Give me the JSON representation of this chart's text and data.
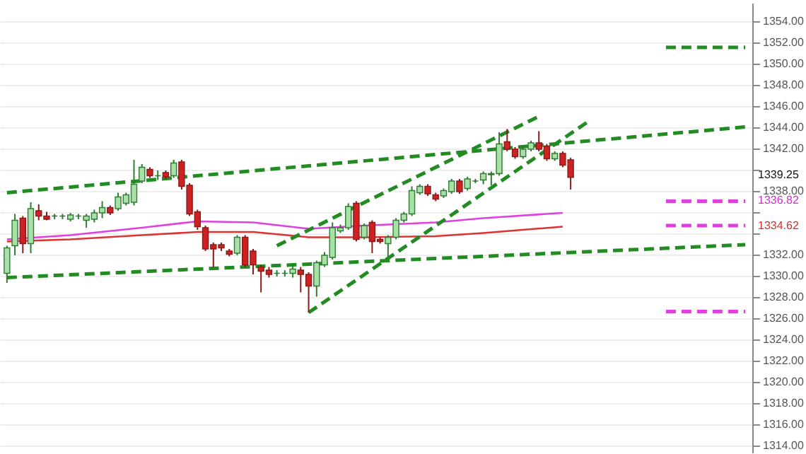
{
  "chart_data": {
    "type": "candlestick",
    "categories": [
      null,
      null,
      null,
      null,
      null,
      null,
      null,
      null,
      null,
      null,
      null,
      null,
      null,
      null,
      null,
      null,
      null,
      null,
      null,
      null,
      null,
      null,
      null,
      null,
      null,
      null,
      null,
      null,
      null,
      null,
      null,
      null,
      null,
      null,
      null,
      null,
      null,
      null,
      null,
      null,
      null,
      null,
      null,
      null,
      null,
      null,
      null,
      null,
      null,
      null,
      null,
      null,
      null,
      null,
      null,
      null,
      null,
      null,
      null,
      null,
      null,
      null,
      null,
      null,
      null,
      null,
      null,
      null,
      null,
      null,
      null,
      null,
      null,
      null,
      null,
      null,
      null,
      null,
      null,
      null,
      null,
      null,
      null,
      null,
      null,
      null,
      null,
      null,
      null,
      null,
      null,
      null,
      null,
      null
    ],
    "ohlc": [
      [
        1330.2,
        1332.8,
        1329.3,
        1332.6
      ],
      [
        1332.8,
        1335.8,
        1331.9,
        1335.2
      ],
      [
        1335.4,
        1335.6,
        1332.1,
        1333.0
      ],
      [
        1333.0,
        1336.9,
        1332.1,
        1336.3
      ],
      [
        1336.1,
        1336.7,
        1335.2,
        1335.6
      ],
      [
        1335.6,
        1336.0,
        1335.2,
        1335.3
      ],
      [
        1335.6,
        1335.8,
        1335.3,
        1335.6
      ],
      [
        1335.6,
        1335.8,
        1335.3,
        1335.6
      ],
      [
        1335.3,
        1335.9,
        1335.1,
        1335.7
      ],
      [
        1335.6,
        1335.8,
        1335.3,
        1335.6
      ],
      [
        1335.2,
        1335.8,
        1334.5,
        1335.6
      ],
      [
        1335.3,
        1336.2,
        1335.0,
        1335.9
      ],
      [
        1335.9,
        1337.0,
        1335.4,
        1336.4
      ],
      [
        1336.4,
        1336.6,
        1335.7,
        1335.9
      ],
      [
        1336.3,
        1337.8,
        1336.1,
        1337.4
      ],
      [
        1336.8,
        1337.8,
        1336.6,
        1337.6
      ],
      [
        1336.9,
        1340.9,
        1336.6,
        1338.6
      ],
      [
        1338.9,
        1340.5,
        1338.7,
        1340.2
      ],
      [
        1340.0,
        1340.2,
        1339.2,
        1339.4
      ],
      [
        1339.4,
        1339.9,
        1339.0,
        1339.4
      ],
      [
        1339.7,
        1339.9,
        1339.1,
        1339.3
      ],
      [
        1339.4,
        1340.9,
        1339.2,
        1340.6
      ],
      [
        1340.7,
        1340.9,
        1338.1,
        1338.4
      ],
      [
        1338.5,
        1338.7,
        1335.6,
        1335.8
      ],
      [
        1336.0,
        1336.2,
        1334.3,
        1334.6
      ],
      [
        1334.5,
        1334.7,
        1332.3,
        1332.5
      ],
      [
        1332.9,
        1333.1,
        1330.8,
        1332.5
      ],
      [
        1332.9,
        1333.1,
        1332.3,
        1332.6
      ],
      [
        1332.3,
        1332.5,
        1331.8,
        1332.0
      ],
      [
        1332.1,
        1333.8,
        1331.9,
        1333.6
      ],
      [
        1333.6,
        1333.8,
        1330.8,
        1331.0
      ],
      [
        1332.3,
        1332.5,
        1330.1,
        1331.0
      ],
      [
        1330.8,
        1331.0,
        1328.4,
        1330.4
      ],
      [
        1330.5,
        1330.8,
        1329.8,
        1330.1
      ],
      [
        1330.2,
        1330.5,
        1329.9,
        1330.2
      ],
      [
        1330.2,
        1330.5,
        1329.9,
        1330.2
      ],
      [
        1330.2,
        1330.9,
        1329.8,
        1330.6
      ],
      [
        1330.5,
        1330.8,
        1328.4,
        1330.1
      ],
      [
        1330.1,
        1330.3,
        1326.5,
        1329.0
      ],
      [
        1329.0,
        1331.4,
        1328.0,
        1331.2
      ],
      [
        1331.0,
        1332.2,
        1330.8,
        1331.9
      ],
      [
        1331.7,
        1335.0,
        1331.5,
        1334.5
      ],
      [
        1334.2,
        1334.8,
        1334.0,
        1334.5
      ],
      [
        1334.5,
        1336.8,
        1334.3,
        1336.5
      ],
      [
        1336.8,
        1337.0,
        1333.2,
        1333.4
      ],
      [
        1333.6,
        1334.9,
        1333.4,
        1334.7
      ],
      [
        1335.0,
        1335.2,
        1332.1,
        1333.2
      ],
      [
        1333.4,
        1333.6,
        1333.0,
        1333.2
      ],
      [
        1333.0,
        1333.8,
        1331.7,
        1333.6
      ],
      [
        1333.6,
        1335.4,
        1333.4,
        1335.2
      ],
      [
        1335.2,
        1336.0,
        1335.0,
        1335.8
      ],
      [
        1335.8,
        1338.4,
        1335.6,
        1338.0
      ],
      [
        1337.8,
        1338.6,
        1337.6,
        1338.4
      ],
      [
        1338.4,
        1338.6,
        1337.5,
        1337.7
      ],
      [
        1337.6,
        1337.8,
        1337.0,
        1337.2
      ],
      [
        1337.5,
        1338.2,
        1337.3,
        1338.0
      ],
      [
        1337.9,
        1339.1,
        1337.7,
        1338.9
      ],
      [
        1338.9,
        1339.1,
        1337.7,
        1337.9
      ],
      [
        1338.2,
        1339.3,
        1338.0,
        1339.1
      ],
      [
        1338.9,
        1339.1,
        1338.7,
        1338.9
      ],
      [
        1339.0,
        1339.8,
        1338.6,
        1339.6
      ],
      [
        1339.5,
        1339.8,
        1338.5,
        1339.6
      ],
      [
        1339.6,
        1343.5,
        1339.4,
        1342.4
      ],
      [
        1342.6,
        1343.8,
        1341.7,
        1341.9
      ],
      [
        1341.9,
        1342.1,
        1341.0,
        1341.2
      ],
      [
        1341.2,
        1342.1,
        1341.0,
        1341.9
      ],
      [
        1341.9,
        1342.7,
        1341.7,
        1342.5
      ],
      [
        1342.5,
        1343.6,
        1341.7,
        1341.9
      ],
      [
        1342.2,
        1342.4,
        1340.8,
        1341.0
      ],
      [
        1341.0,
        1341.7,
        1340.8,
        1341.5
      ],
      [
        1341.5,
        1341.7,
        1340.2,
        1340.4
      ],
      [
        1340.9,
        1341.1,
        1338.1,
        1339.25
      ],
      null,
      null,
      null,
      null,
      null,
      null,
      null,
      null,
      null,
      null,
      null,
      null,
      null,
      null,
      null,
      null,
      null,
      null,
      null,
      null,
      null,
      null
    ],
    "series": [
      {
        "type": "line",
        "color": "#e040e0",
        "line_style": "solid",
        "values": [
          1333.4,
          null,
          null,
          null,
          null,
          null,
          null,
          null,
          1333.8,
          null,
          null,
          null,
          null,
          null,
          null,
          null,
          null,
          1334.5,
          null,
          null,
          null,
          null,
          null,
          null,
          1335.1,
          null,
          null,
          null,
          null,
          null,
          null,
          1335.0,
          null,
          null,
          null,
          null,
          null,
          null,
          1334.4,
          null,
          null,
          null,
          null,
          null,
          null,
          1334.7,
          null,
          null,
          null,
          null,
          null,
          null,
          null,
          null,
          1335.0,
          null,
          null,
          null,
          null,
          null,
          1335.4,
          null,
          null,
          null,
          null,
          null,
          null,
          null,
          null,
          null,
          1335.9,
          null,
          null,
          null,
          null,
          null,
          null,
          null,
          null,
          null,
          null,
          null,
          null,
          null,
          null,
          null,
          null,
          null,
          null,
          null,
          null,
          null,
          null,
          null
        ]
      },
      {
        "type": "line",
        "color": "#dd3333",
        "line_style": "solid",
        "values": [
          1333.2,
          null,
          null,
          null,
          null,
          null,
          null,
          null,
          1333.4,
          null,
          null,
          null,
          null,
          null,
          null,
          null,
          null,
          1333.8,
          null,
          null,
          null,
          null,
          null,
          null,
          1334.1,
          null,
          null,
          null,
          null,
          null,
          null,
          1334.1,
          null,
          null,
          null,
          null,
          null,
          null,
          1333.6,
          null,
          null,
          null,
          null,
          null,
          null,
          1333.6,
          null,
          null,
          null,
          null,
          null,
          null,
          null,
          null,
          1333.7,
          null,
          null,
          null,
          null,
          null,
          1334.0,
          null,
          null,
          null,
          null,
          null,
          null,
          null,
          null,
          null,
          1334.6,
          null,
          null,
          null,
          null,
          null,
          null,
          null,
          null,
          null,
          null,
          null,
          null,
          null,
          null,
          null,
          null,
          null,
          null,
          null,
          null,
          null,
          null,
          null
        ]
      },
      {
        "type": "line",
        "color": "#228b22",
        "line_style": "dashed",
        "values": [
          1337.8,
          null,
          null,
          null,
          null,
          null,
          null,
          null,
          null,
          null,
          null,
          null,
          null,
          null,
          null,
          null,
          null,
          null,
          null,
          null,
          null,
          null,
          null,
          null,
          null,
          null,
          null,
          null,
          null,
          null,
          null,
          null,
          null,
          null,
          null,
          null,
          null,
          null,
          null,
          null,
          null,
          null,
          null,
          null,
          null,
          null,
          null,
          null,
          null,
          null,
          null,
          null,
          null,
          null,
          null,
          null,
          null,
          null,
          null,
          null,
          null,
          null,
          null,
          null,
          null,
          null,
          null,
          null,
          null,
          null,
          null,
          null,
          null,
          null,
          null,
          null,
          null,
          null,
          null,
          null,
          null,
          null,
          null,
          null,
          null,
          null,
          null,
          null,
          null,
          null,
          null,
          null,
          null,
          1344.0
        ]
      },
      {
        "type": "line",
        "color": "#228b22",
        "line_style": "dashed",
        "values": [
          1329.8,
          null,
          null,
          null,
          null,
          null,
          null,
          null,
          null,
          null,
          null,
          null,
          null,
          null,
          null,
          null,
          null,
          null,
          null,
          null,
          null,
          null,
          null,
          null,
          null,
          null,
          null,
          null,
          null,
          null,
          null,
          null,
          null,
          null,
          null,
          null,
          null,
          null,
          null,
          null,
          null,
          null,
          null,
          null,
          null,
          null,
          null,
          null,
          null,
          null,
          null,
          null,
          null,
          null,
          null,
          null,
          null,
          null,
          null,
          null,
          null,
          null,
          null,
          null,
          null,
          null,
          null,
          null,
          null,
          null,
          null,
          null,
          null,
          null,
          null,
          null,
          null,
          null,
          null,
          null,
          null,
          null,
          null,
          null,
          null,
          null,
          null,
          null,
          null,
          null,
          null,
          null,
          null,
          1332.9
        ]
      },
      {
        "type": "line",
        "color": "#228b22",
        "line_style": "dashed",
        "values": [
          null,
          null,
          null,
          null,
          null,
          null,
          null,
          null,
          null,
          null,
          null,
          null,
          null,
          null,
          null,
          null,
          null,
          null,
          null,
          null,
          null,
          null,
          null,
          null,
          null,
          null,
          null,
          null,
          null,
          null,
          null,
          null,
          null,
          null,
          1332.8,
          null,
          null,
          null,
          null,
          null,
          null,
          null,
          null,
          null,
          null,
          null,
          null,
          null,
          null,
          null,
          null,
          null,
          null,
          null,
          null,
          null,
          null,
          null,
          null,
          null,
          null,
          null,
          null,
          null,
          null,
          null,
          null,
          1345.0,
          null,
          null,
          null,
          null,
          null,
          null,
          null,
          null,
          null,
          null,
          null,
          null,
          null,
          null,
          null,
          null,
          null,
          null,
          null,
          null,
          null,
          null,
          null,
          null,
          null,
          null
        ]
      },
      {
        "type": "line",
        "color": "#228b22",
        "line_style": "dashed",
        "values": [
          null,
          null,
          null,
          null,
          null,
          null,
          null,
          null,
          null,
          null,
          null,
          null,
          null,
          null,
          null,
          null,
          null,
          null,
          null,
          null,
          null,
          null,
          null,
          null,
          null,
          null,
          null,
          null,
          null,
          null,
          null,
          null,
          null,
          null,
          null,
          null,
          null,
          null,
          1326.5,
          null,
          null,
          null,
          null,
          null,
          null,
          null,
          null,
          null,
          null,
          null,
          null,
          null,
          null,
          null,
          null,
          null,
          null,
          null,
          null,
          null,
          null,
          null,
          null,
          null,
          null,
          null,
          null,
          null,
          null,
          null,
          null,
          null,
          null,
          1344.4,
          null,
          null,
          null,
          null,
          null,
          null,
          null,
          null,
          null,
          null,
          null,
          null,
          null,
          null,
          null,
          null,
          null,
          null,
          null,
          null
        ]
      },
      {
        "type": "line",
        "color": "#228b22",
        "line_style": "dashed",
        "values": [
          null,
          null,
          null,
          null,
          null,
          null,
          null,
          null,
          null,
          null,
          null,
          null,
          null,
          null,
          null,
          null,
          null,
          null,
          null,
          null,
          null,
          null,
          null,
          null,
          null,
          null,
          null,
          null,
          null,
          null,
          null,
          null,
          null,
          null,
          null,
          null,
          null,
          null,
          null,
          null,
          null,
          null,
          null,
          null,
          null,
          null,
          null,
          null,
          null,
          null,
          null,
          null,
          null,
          null,
          null,
          null,
          null,
          null,
          null,
          null,
          null,
          null,
          null,
          null,
          null,
          null,
          null,
          null,
          null,
          null,
          null,
          null,
          null,
          null,
          null,
          null,
          null,
          null,
          null,
          null,
          null,
          null,
          null,
          1351.5,
          null,
          null,
          null,
          null,
          null,
          null,
          null,
          null,
          null,
          1351.5
        ]
      },
      {
        "type": "line",
        "color": "#e040e0",
        "line_style": "dashed",
        "values": [
          null,
          null,
          null,
          null,
          null,
          null,
          null,
          null,
          null,
          null,
          null,
          null,
          null,
          null,
          null,
          null,
          null,
          null,
          null,
          null,
          null,
          null,
          null,
          null,
          null,
          null,
          null,
          null,
          null,
          null,
          null,
          null,
          null,
          null,
          null,
          null,
          null,
          null,
          null,
          null,
          null,
          null,
          null,
          null,
          null,
          null,
          null,
          null,
          null,
          null,
          null,
          null,
          null,
          null,
          null,
          null,
          null,
          null,
          null,
          null,
          null,
          null,
          null,
          null,
          null,
          null,
          null,
          null,
          null,
          null,
          null,
          null,
          null,
          null,
          null,
          null,
          null,
          null,
          null,
          null,
          null,
          null,
          null,
          1337.0,
          null,
          null,
          null,
          null,
          null,
          null,
          null,
          null,
          null,
          1337.0
        ]
      },
      {
        "type": "line",
        "color": "#e040e0",
        "line_style": "dashed",
        "values": [
          null,
          null,
          null,
          null,
          null,
          null,
          null,
          null,
          null,
          null,
          null,
          null,
          null,
          null,
          null,
          null,
          null,
          null,
          null,
          null,
          null,
          null,
          null,
          null,
          null,
          null,
          null,
          null,
          null,
          null,
          null,
          null,
          null,
          null,
          null,
          null,
          null,
          null,
          null,
          null,
          null,
          null,
          null,
          null,
          null,
          null,
          null,
          null,
          null,
          null,
          null,
          null,
          null,
          null,
          null,
          null,
          null,
          null,
          null,
          null,
          null,
          null,
          null,
          null,
          null,
          null,
          null,
          null,
          null,
          null,
          null,
          null,
          null,
          null,
          null,
          null,
          null,
          null,
          null,
          null,
          null,
          null,
          null,
          1334.7,
          null,
          null,
          null,
          null,
          null,
          null,
          null,
          null,
          null,
          1334.7
        ]
      },
      {
        "type": "line",
        "color": "#e040e0",
        "line_style": "dashed",
        "values": [
          null,
          null,
          null,
          null,
          null,
          null,
          null,
          null,
          null,
          null,
          null,
          null,
          null,
          null,
          null,
          null,
          null,
          null,
          null,
          null,
          null,
          null,
          null,
          null,
          null,
          null,
          null,
          null,
          null,
          null,
          null,
          null,
          null,
          null,
          null,
          null,
          null,
          null,
          null,
          null,
          null,
          null,
          null,
          null,
          null,
          null,
          null,
          null,
          null,
          null,
          null,
          null,
          null,
          null,
          null,
          null,
          null,
          null,
          null,
          null,
          null,
          null,
          null,
          null,
          null,
          null,
          null,
          null,
          null,
          null,
          null,
          null,
          null,
          null,
          null,
          null,
          null,
          null,
          null,
          null,
          null,
          null,
          null,
          1326.6,
          null,
          null,
          null,
          null,
          null,
          null,
          null,
          null,
          null,
          1326.6
        ]
      }
    ],
    "annotations": [
      "1339.25",
      "1336.82",
      "1334.62"
    ],
    "ylim": [
      1313.3,
      1355.7
    ],
    "yticks": [
      {
        "value": 1314,
        "label": "1314.00"
      },
      {
        "value": 1316,
        "label": "1316.00"
      },
      {
        "value": 1318,
        "label": "1318.00"
      },
      {
        "value": 1320,
        "label": "1320.00"
      },
      {
        "value": 1322,
        "label": "1322.00"
      },
      {
        "value": 1324,
        "label": "1324.00"
      },
      {
        "value": 1326,
        "label": "1326.00"
      },
      {
        "value": 1328,
        "label": "1328.00"
      },
      {
        "value": 1330,
        "label": "1330.00"
      },
      {
        "value": 1332,
        "label": "1332.00"
      },
      {
        "value": 1334,
        "label": null
      },
      {
        "value": 1336,
        "label": null
      },
      {
        "value": 1338,
        "label": "1338.00"
      },
      {
        "value": 1340,
        "label": null
      },
      {
        "value": 1342,
        "label": "1342.00"
      },
      {
        "value": 1344,
        "label": "1344.00"
      },
      {
        "value": 1346,
        "label": "1346.00"
      },
      {
        "value": 1348,
        "label": "1348.00"
      },
      {
        "value": 1350,
        "label": "1350.00"
      },
      {
        "value": 1352,
        "label": "1352.00"
      },
      {
        "value": 1354,
        "label": "1354.00"
      }
    ],
    "grid": "y"
  }
}
